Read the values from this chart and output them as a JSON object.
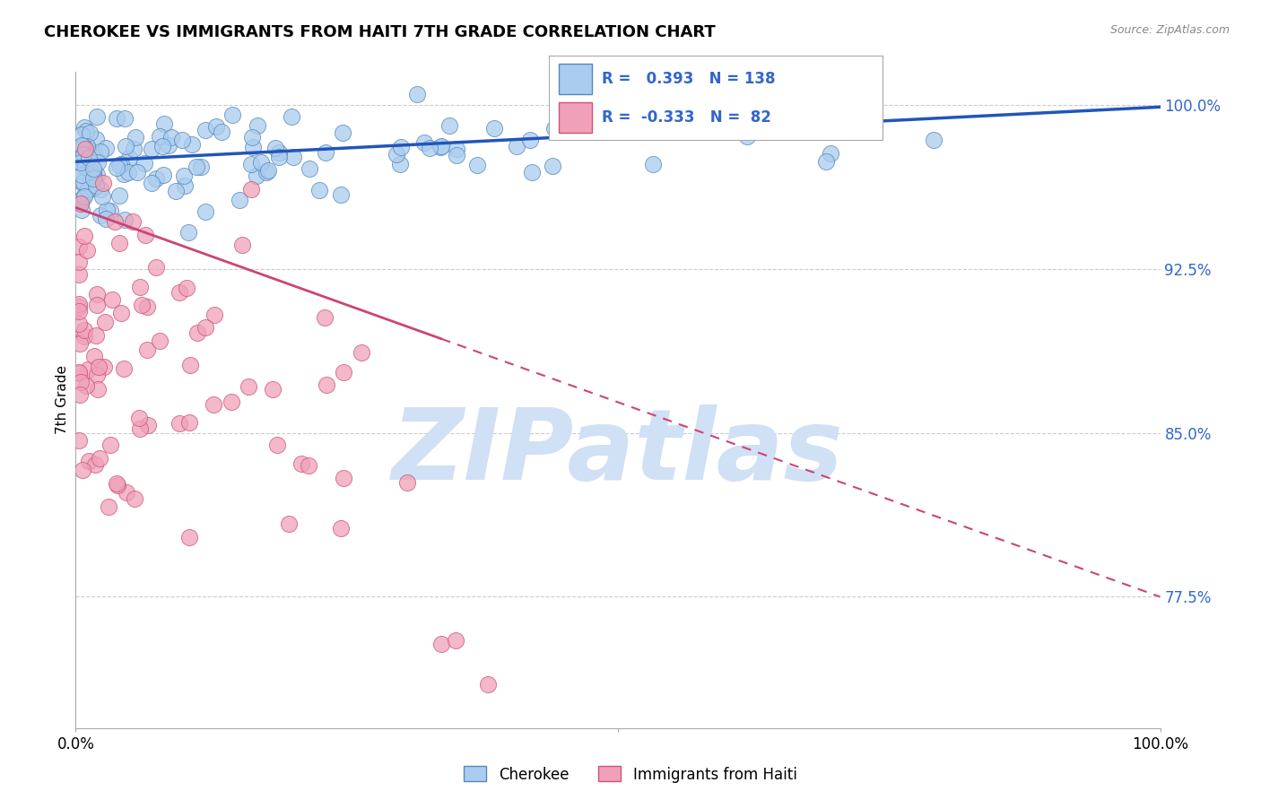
{
  "title": "CHEROKEE VS IMMIGRANTS FROM HAITI 7TH GRADE CORRELATION CHART",
  "source": "Source: ZipAtlas.com",
  "ylabel": "7th Grade",
  "xlim": [
    0.0,
    1.0
  ],
  "ylim": [
    0.715,
    1.015
  ],
  "yticks": [
    0.775,
    0.85,
    0.925,
    1.0
  ],
  "ytick_labels": [
    "77.5%",
    "85.0%",
    "92.5%",
    "100.0%"
  ],
  "background_color": "#ffffff",
  "grid_color": "#cccccc",
  "cherokee_color": "#aaccee",
  "cherokee_edge_color": "#5588bb",
  "haiti_color": "#f0a0b8",
  "haiti_edge_color": "#cc5577",
  "trend_cherokee_color": "#2255bb",
  "trend_haiti_color": "#cc4477",
  "tick_label_color": "#3366cc",
  "R_cherokee": 0.393,
  "N_cherokee": 138,
  "R_haiti": -0.333,
  "N_haiti": 82,
  "watermark": "ZIPatlas",
  "watermark_color": "#d0e0f5",
  "cherokee_trend_start_y": 0.974,
  "cherokee_trend_end_y": 0.999,
  "haiti_trend_start_y": 0.953,
  "haiti_trend_end_y": 0.775
}
